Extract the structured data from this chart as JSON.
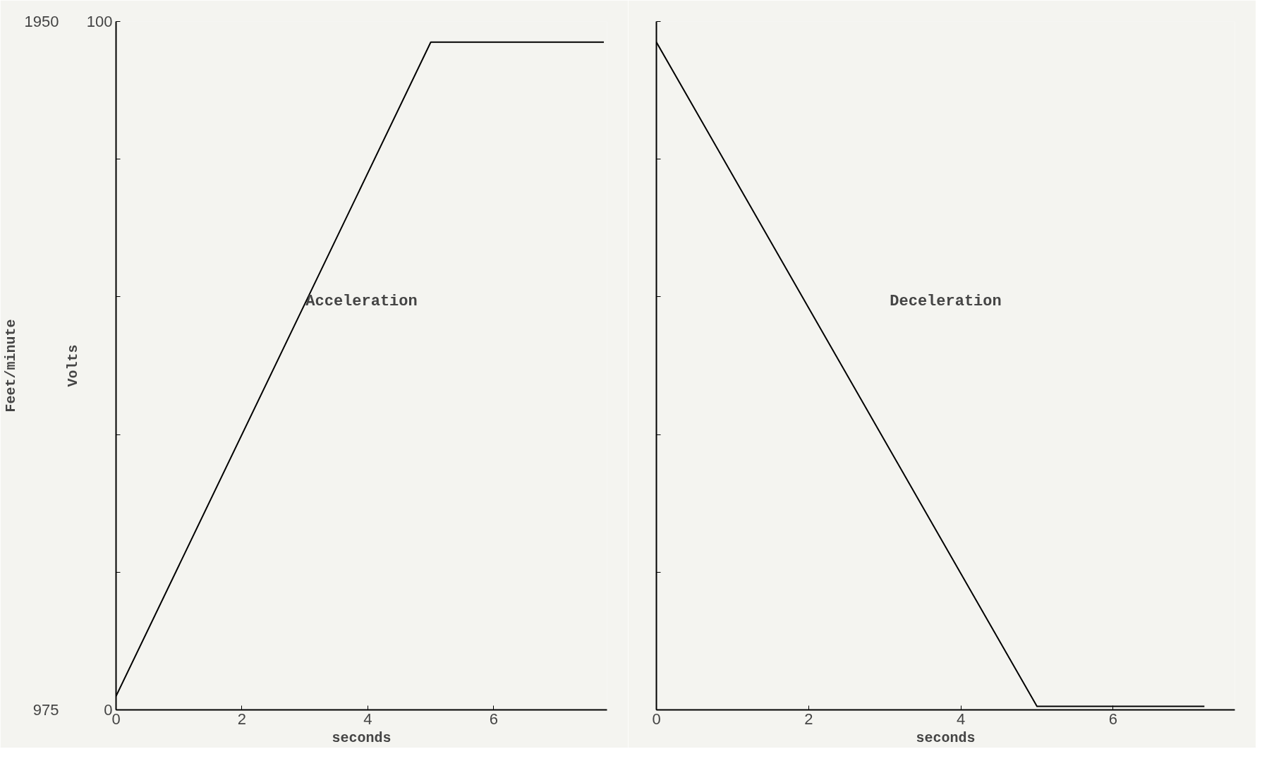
{
  "chart_data": [
    {
      "type": "line",
      "xlabel": "seconds",
      "ylabel": "Volts",
      "y2label": "Feet/minute",
      "annotations": [
        "Acceleration"
      ],
      "x": [
        0,
        5,
        7.75
      ],
      "series": [
        {
          "color": "#000000",
          "values": [
            2,
            97,
            97
          ]
        }
      ],
      "xlim": [
        0,
        7.8
      ],
      "xticks": [
        0,
        2,
        4,
        6
      ],
      "ylim": [
        0,
        100
      ],
      "yticks": [
        0,
        {
          "value": 20,
          "label": null
        },
        {
          "value": 40,
          "label": null
        },
        {
          "value": 60,
          "label": null
        },
        {
          "value": 80,
          "label": null
        },
        100
      ],
      "y2lim": [
        975,
        1950
      ],
      "y2ticks": [
        975,
        1950
      ],
      "grid": false
    },
    {
      "type": "line",
      "xlabel": "seconds",
      "annotations": [
        "Deceleration"
      ],
      "x": [
        0,
        5,
        7.2
      ],
      "series": [
        {
          "color": "#000000",
          "values": [
            97,
            0.5,
            0.5
          ]
        }
      ],
      "xlim": [
        0,
        7.6
      ],
      "xticks": [
        0,
        2,
        4,
        6
      ],
      "ylim": [
        0,
        100
      ],
      "yticks": [
        {
          "value": 0,
          "label": null
        },
        {
          "value": 20,
          "label": null
        },
        {
          "value": 40,
          "label": null
        },
        {
          "value": 60,
          "label": null
        },
        {
          "value": 80,
          "label": null
        },
        {
          "value": 100,
          "label": null
        }
      ],
      "tick_labels": "x",
      "grid": false
    }
  ]
}
